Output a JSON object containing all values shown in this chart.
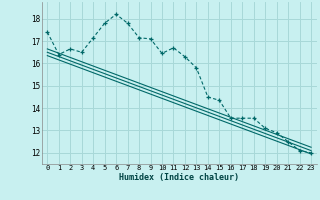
{
  "title": "",
  "xlabel": "Humidex (Indice chaleur)",
  "bg_color": "#c8f0f0",
  "grid_color": "#a8d8d8",
  "line_color": "#006868",
  "xlim": [
    -0.5,
    23.5
  ],
  "ylim": [
    11.5,
    18.75
  ],
  "yticks": [
    12,
    13,
    14,
    15,
    16,
    17,
    18
  ],
  "xticks": [
    0,
    1,
    2,
    3,
    4,
    5,
    6,
    7,
    8,
    9,
    10,
    11,
    12,
    13,
    14,
    15,
    16,
    17,
    18,
    19,
    20,
    21,
    22,
    23
  ],
  "main_series": [
    [
      0,
      17.4
    ],
    [
      1,
      16.4
    ],
    [
      2,
      16.65
    ],
    [
      3,
      16.5
    ],
    [
      4,
      17.15
    ],
    [
      5,
      17.8
    ],
    [
      6,
      18.2
    ],
    [
      7,
      17.8
    ],
    [
      8,
      17.15
    ],
    [
      9,
      17.1
    ],
    [
      10,
      16.45
    ],
    [
      11,
      16.7
    ],
    [
      12,
      16.3
    ],
    [
      13,
      15.8
    ],
    [
      14,
      14.5
    ],
    [
      15,
      14.35
    ],
    [
      16,
      13.55
    ],
    [
      17,
      13.55
    ],
    [
      18,
      13.55
    ],
    [
      19,
      13.1
    ],
    [
      20,
      12.9
    ],
    [
      21,
      12.5
    ],
    [
      22,
      12.1
    ],
    [
      23,
      12.0
    ]
  ],
  "linear1": [
    [
      0,
      16.35
    ],
    [
      23,
      11.95
    ]
  ],
  "linear2": [
    [
      0,
      16.5
    ],
    [
      23,
      12.1
    ]
  ],
  "linear3": [
    [
      0,
      16.65
    ],
    [
      23,
      12.25
    ]
  ]
}
